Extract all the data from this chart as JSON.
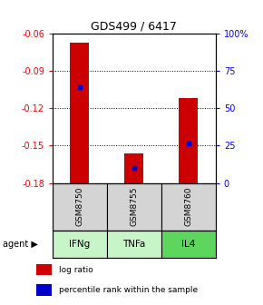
{
  "title": "GDS499 / 6417",
  "ylim_left": [
    -0.18,
    -0.06
  ],
  "ylim_right": [
    0,
    100
  ],
  "yticks_left": [
    -0.18,
    -0.15,
    -0.12,
    -0.09,
    -0.06
  ],
  "yticks_right": [
    0,
    25,
    50,
    75,
    100
  ],
  "ytick_labels_right": [
    "0",
    "25",
    "50",
    "75",
    "100%"
  ],
  "samples": [
    "GSM8750",
    "GSM8755",
    "GSM8760"
  ],
  "agents": [
    "IFNg",
    "TNFa",
    "IL4"
  ],
  "agent_colors": [
    "#c8f5c8",
    "#c8f5c8",
    "#5cd65c"
  ],
  "sample_bg": "#d4d4d4",
  "bar_color": "#cc0000",
  "dot_color": "#0000cc",
  "bar_bottom": -0.18,
  "bar_tops": [
    -0.067,
    -0.156,
    -0.112
  ],
  "dot_values": [
    -0.103,
    -0.168,
    -0.148
  ],
  "bar_width": 0.35
}
